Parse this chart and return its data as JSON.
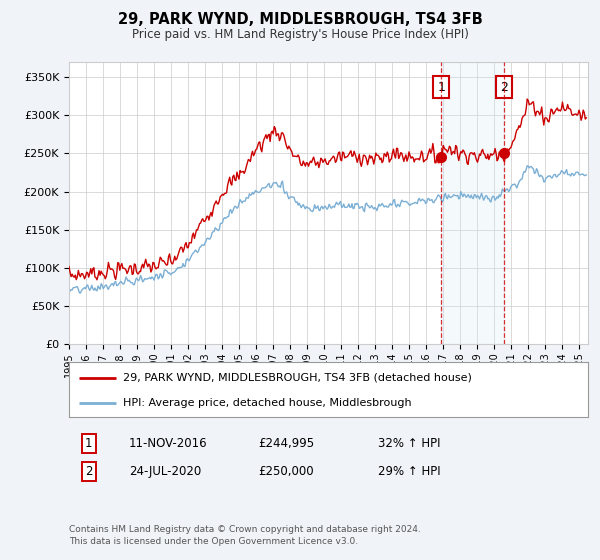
{
  "title_line1": "29, PARK WYND, MIDDLESBROUGH, TS4 3FB",
  "title_line2": "Price paid vs. HM Land Registry's House Price Index (HPI)",
  "ylabel_ticks": [
    "£0",
    "£50K",
    "£100K",
    "£150K",
    "£200K",
    "£250K",
    "£300K",
    "£350K"
  ],
  "ytick_vals": [
    0,
    50000,
    100000,
    150000,
    200000,
    250000,
    300000,
    350000
  ],
  "ylim": [
    0,
    370000
  ],
  "xlim_start": 1995.0,
  "xlim_end": 2025.5,
  "xtick_years": [
    1995,
    1996,
    1997,
    1998,
    1999,
    2000,
    2001,
    2002,
    2003,
    2004,
    2005,
    2006,
    2007,
    2008,
    2009,
    2010,
    2011,
    2012,
    2013,
    2014,
    2015,
    2016,
    2017,
    2018,
    2019,
    2020,
    2021,
    2022,
    2023,
    2024,
    2025
  ],
  "marker1_x": 2016.87,
  "marker1_y": 244995,
  "marker2_x": 2020.56,
  "marker2_y": 250000,
  "marker1_date": "11-NOV-2016",
  "marker1_price": "£244,995",
  "marker1_hpi": "32% ↑ HPI",
  "marker2_date": "24-JUL-2020",
  "marker2_price": "£250,000",
  "marker2_hpi": "29% ↑ HPI",
  "property_color": "#cc0000",
  "hpi_color": "#7bafd4",
  "shade_color": "#d6e8f7",
  "background_color": "#f0f4f8",
  "plot_bg_color": "#ffffff",
  "grid_color": "#cccccc",
  "legend_label1": "29, PARK WYND, MIDDLESBROUGH, TS4 3FB (detached house)",
  "legend_label2": "HPI: Average price, detached house, Middlesbrough",
  "footer": "Contains HM Land Registry data © Crown copyright and database right 2024.\nThis data is licensed under the Open Government Licence v3.0."
}
